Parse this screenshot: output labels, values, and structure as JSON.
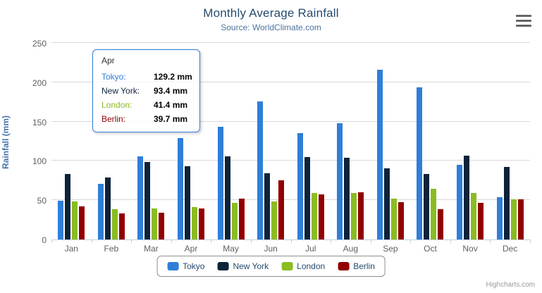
{
  "chart_data": {
    "type": "bar",
    "title": "Monthly Average Rainfall",
    "subtitle": "Source: WorldClimate.com",
    "categories": [
      "Jan",
      "Feb",
      "Mar",
      "Apr",
      "May",
      "Jun",
      "Jul",
      "Aug",
      "Sep",
      "Oct",
      "Nov",
      "Dec"
    ],
    "series": [
      {
        "name": "Tokyo",
        "color": "#2f7ed8",
        "values": [
          49.9,
          71.5,
          106.4,
          129.2,
          144.0,
          176.0,
          135.6,
          148.5,
          216.4,
          194.1,
          95.6,
          54.4
        ]
      },
      {
        "name": "New York",
        "color": "#0d233a",
        "values": [
          83.6,
          78.8,
          98.5,
          93.4,
          106.0,
          84.5,
          105.0,
          104.3,
          91.2,
          83.5,
          106.6,
          92.3
        ]
      },
      {
        "name": "London",
        "color": "#8bbc21",
        "values": [
          48.9,
          38.8,
          39.3,
          41.4,
          47.0,
          48.3,
          59.0,
          59.6,
          52.4,
          65.2,
          59.3,
          51.2
        ]
      },
      {
        "name": "Berlin",
        "color": "#910000",
        "values": [
          42.4,
          33.2,
          34.5,
          39.7,
          52.6,
          75.5,
          57.4,
          60.4,
          47.6,
          39.1,
          46.8,
          51.1
        ]
      }
    ],
    "xlabel": "",
    "ylabel": "Rainfall (mm)",
    "ylim": [
      0,
      250
    ],
    "yticks": [
      0,
      50,
      100,
      150,
      200,
      250
    ],
    "grid": true,
    "legend_position": "bottom"
  },
  "tooltip": {
    "header": "Apr",
    "border_color": "#2f7ed8",
    "rows": [
      {
        "label": "Tokyo:",
        "value": "129.2 mm",
        "color": "#2f7ed8"
      },
      {
        "label": "New York:",
        "value": "93.4 mm",
        "color": "#0d233a"
      },
      {
        "label": "London:",
        "value": "41.4 mm",
        "color": "#8bbc21"
      },
      {
        "label": "Berlin:",
        "value": "39.7 mm",
        "color": "#910000"
      }
    ]
  },
  "credits": {
    "label": "Highcharts.com"
  },
  "ui_colors": {
    "title": "#274b6d",
    "subtitle": "#4d759e",
    "axis_labels": "#606060",
    "axis_title": "#4572a7",
    "gridline": "#d8d8d8",
    "axis_line": "#c0d0e0",
    "legend_border": "#909090"
  }
}
